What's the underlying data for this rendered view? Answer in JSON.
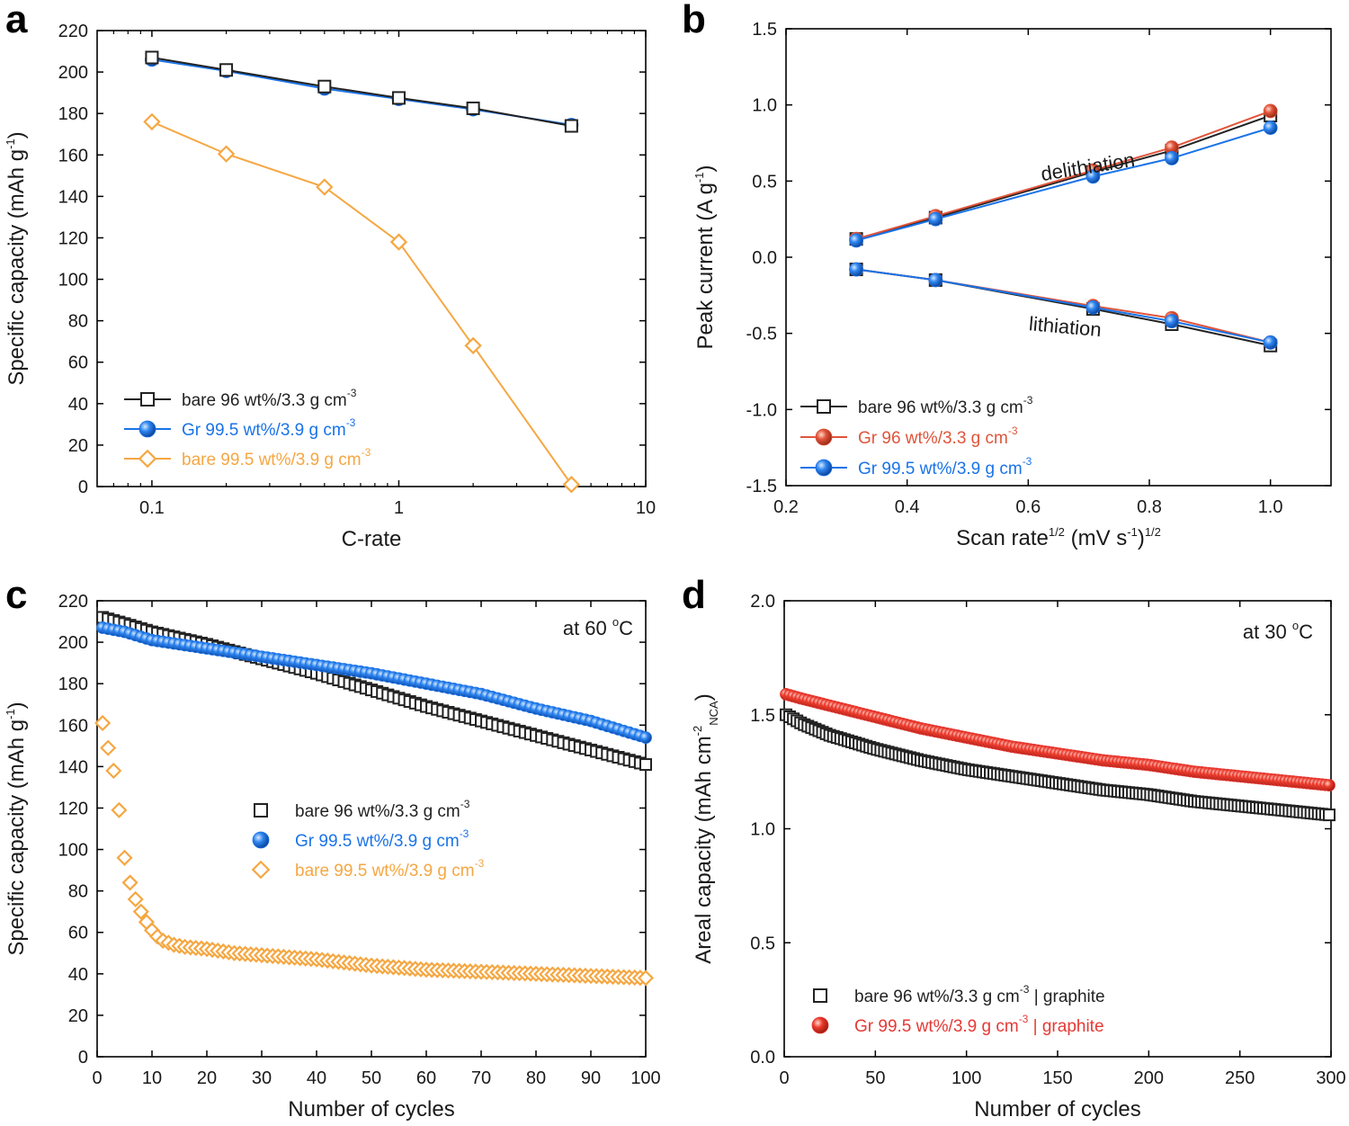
{
  "colors": {
    "black": "#222222",
    "blue": "#1a73e8",
    "orange": "#f5a742",
    "red": "#e53935",
    "orange_red": "#e0543a"
  },
  "panels": {
    "a": {
      "letter": "a"
    },
    "b": {
      "letter": "b"
    },
    "c": {
      "letter": "c"
    },
    "d": {
      "letter": "d"
    }
  },
  "chart_data": [
    {
      "id": "a",
      "type": "line",
      "xscale": "log",
      "xlabel": "C-rate",
      "ylabel": {
        "main": "Specific capacity (mAh g",
        "sup": "-1",
        "close": ")"
      },
      "xlim": [
        0.06,
        10
      ],
      "ylim": [
        0,
        220
      ],
      "xticks": [
        0.1,
        1,
        10
      ],
      "xtick_labels": [
        "0.1",
        "1",
        "10"
      ],
      "yticks": [
        0,
        20,
        40,
        60,
        80,
        100,
        120,
        140,
        160,
        180,
        200,
        220
      ],
      "x": [
        0.1,
        0.2,
        0.5,
        1,
        2,
        5
      ],
      "legend_position": "bottom-left",
      "series": [
        {
          "name": "bare 96 wt%/3.3 g cm",
          "sup": "-3",
          "marker": "square-open",
          "color": "#222222",
          "values": [
            207,
            201,
            193,
            187.5,
            182.5,
            174
          ]
        },
        {
          "name": "Gr 99.5 wt%/3.9 g cm",
          "sup": "-3",
          "marker": "circle-filled",
          "color": "#1a73e8",
          "values": [
            206,
            200.5,
            192,
            187,
            182,
            174.5
          ]
        },
        {
          "name": "bare 99.5 wt%/3.9 g cm",
          "sup": "-3",
          "marker": "diamond-open",
          "color": "#f5a742",
          "values": [
            176,
            160.5,
            144.5,
            118,
            68,
            1
          ]
        }
      ]
    },
    {
      "id": "b",
      "type": "line",
      "xlabel": {
        "main": "Scan rate",
        "sup1": "1/2",
        "mid": " (mV s",
        "sup2": "-1",
        "close": ")",
        "sup3": "1/2"
      },
      "ylabel": {
        "main": "Peak current (A g",
        "sup": "-1",
        "close": ")"
      },
      "xlim": [
        0.2,
        1.1
      ],
      "ylim": [
        -1.5,
        1.5
      ],
      "xticks": [
        0.2,
        0.4,
        0.6,
        0.8,
        1.0
      ],
      "xtick_labels": [
        "0.2",
        "0.4",
        "0.6",
        "0.8",
        "1.0"
      ],
      "yticks": [
        -1.5,
        -1.0,
        -0.5,
        0.0,
        0.5,
        1.0,
        1.5
      ],
      "ytick_labels": [
        "-1.5",
        "-1.0",
        "-0.5",
        "0.0",
        "0.5",
        "1.0",
        "1.5"
      ],
      "x": [
        0.316,
        0.447,
        0.707,
        0.837,
        1.0
      ],
      "annotations": [
        {
          "text": "delithiation",
          "x": 0.7,
          "y": 0.55,
          "angle": -9
        },
        {
          "text": "lithiation",
          "x": 0.66,
          "y": -0.5,
          "angle": 5
        }
      ],
      "legend_position": "bottom-left",
      "series": [
        {
          "name": "bare 96 wt%/3.3 g cm",
          "sup": "-3",
          "marker": "square-open",
          "color": "#222222",
          "delithiation": [
            0.12,
            0.26,
            0.56,
            0.7,
            0.93
          ],
          "lithiation": [
            -0.08,
            -0.15,
            -0.34,
            -0.44,
            -0.58
          ]
        },
        {
          "name": "Gr 96 wt%/3.3 g cm",
          "sup": "-3",
          "marker": "circle-filled",
          "color": "#e0543a",
          "delithiation": [
            0.12,
            0.27,
            0.57,
            0.72,
            0.96
          ],
          "lithiation": [
            -0.08,
            -0.15,
            -0.32,
            -0.4,
            -0.56
          ]
        },
        {
          "name": "Gr 99.5 wt%/3.9 g cm",
          "sup": "-3",
          "marker": "circle-filled",
          "color": "#1a73e8",
          "delithiation": [
            0.11,
            0.25,
            0.53,
            0.65,
            0.85
          ],
          "lithiation": [
            -0.08,
            -0.15,
            -0.33,
            -0.42,
            -0.56
          ]
        }
      ]
    },
    {
      "id": "c",
      "type": "scatter",
      "xlabel": "Number of cycles",
      "ylabel": {
        "main": "Specific capacity (mAh g",
        "sup": "-1",
        "close": ")"
      },
      "xlim": [
        0,
        100
      ],
      "ylim": [
        0,
        220
      ],
      "xticks": [
        0,
        10,
        20,
        30,
        40,
        50,
        60,
        70,
        80,
        90,
        100
      ],
      "yticks": [
        0,
        20,
        40,
        60,
        80,
        100,
        120,
        140,
        160,
        180,
        200,
        220
      ],
      "annotation": {
        "text": "at 60 ",
        "sup": "o",
        "tail": "C"
      },
      "legend_position": "center",
      "series": [
        {
          "name": "bare 96 wt%/3.3 g cm",
          "sup": "-3",
          "marker": "square-open",
          "color": "#222222",
          "x": [
            1,
            5,
            10,
            20,
            30,
            40,
            50,
            60,
            70,
            80,
            90,
            100
          ],
          "values": [
            212,
            209,
            205,
            199,
            192,
            185,
            177,
            169,
            162,
            155,
            148,
            141
          ]
        },
        {
          "name": "Gr 99.5 wt%/3.9 g cm",
          "sup": "-3",
          "marker": "circle-filled",
          "color": "#1a73e8",
          "x": [
            1,
            5,
            10,
            20,
            30,
            40,
            50,
            60,
            70,
            80,
            90,
            100
          ],
          "values": [
            207,
            205,
            201,
            197,
            193,
            189,
            185,
            180,
            175,
            168,
            162,
            154
          ]
        },
        {
          "name": "bare 99.5 wt%/3.9 g cm",
          "sup": "-3",
          "marker": "diamond-open",
          "color": "#f5a742",
          "x": [
            1,
            2,
            3,
            4,
            5,
            6,
            7,
            8,
            9,
            10,
            11,
            12,
            14,
            16,
            20,
            25,
            30,
            40,
            50,
            60,
            70,
            80,
            90,
            100
          ],
          "values": [
            161,
            149,
            138,
            119,
            96,
            84,
            76,
            70,
            65,
            61,
            58,
            56,
            54,
            53,
            52,
            50,
            49,
            47,
            44,
            42,
            41,
            40,
            39,
            38
          ]
        }
      ]
    },
    {
      "id": "d",
      "type": "scatter",
      "xlabel": "Number of cycles",
      "ylabel": {
        "main": "Areal capacity (mAh cm",
        "sup": "-2",
        "sub": "NCA",
        "close": ")"
      },
      "xlim": [
        0,
        300
      ],
      "ylim": [
        0.0,
        2.0
      ],
      "xticks": [
        0,
        50,
        100,
        150,
        200,
        250,
        300
      ],
      "yticks": [
        0.0,
        0.5,
        1.0,
        1.5,
        2.0
      ],
      "ytick_labels": [
        "0.0",
        "0.5",
        "1.0",
        "1.5",
        "2.0"
      ],
      "annotation": {
        "text": "at 30 ",
        "sup": "o",
        "tail": "C"
      },
      "legend_position": "bottom-left",
      "series": [
        {
          "name": "bare 96 wt%/3.3 g cm",
          "sup": "-3",
          "tail": " | graphite",
          "marker": "square-open",
          "color": "#222222",
          "x": [
            1,
            10,
            25,
            50,
            75,
            100,
            125,
            150,
            175,
            200,
            225,
            250,
            275,
            300
          ],
          "values": [
            1.5,
            1.46,
            1.41,
            1.35,
            1.3,
            1.26,
            1.23,
            1.2,
            1.17,
            1.15,
            1.12,
            1.1,
            1.08,
            1.06
          ]
        },
        {
          "name": "Gr 99.5 wt%/3.9 g cm",
          "sup": "-3",
          "tail": " | graphite",
          "marker": "circle-filled",
          "color": "#e53935",
          "x": [
            1,
            10,
            25,
            50,
            75,
            100,
            125,
            150,
            175,
            200,
            225,
            250,
            275,
            300
          ],
          "values": [
            1.59,
            1.57,
            1.54,
            1.49,
            1.44,
            1.4,
            1.36,
            1.33,
            1.3,
            1.28,
            1.25,
            1.23,
            1.21,
            1.19
          ]
        }
      ]
    }
  ]
}
